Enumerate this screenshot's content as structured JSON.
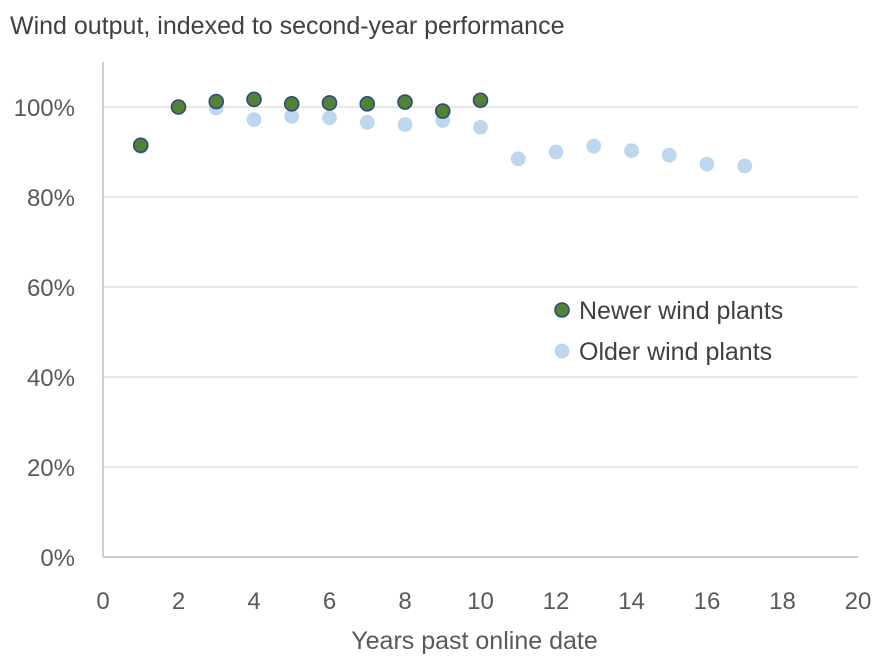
{
  "chart_data": {
    "type": "scatter",
    "title": "Wind output, indexed to second-year performance",
    "xlabel": "Years past online date",
    "ylabel": "",
    "xlim": [
      0,
      20
    ],
    "ylim": [
      0,
      1.1
    ],
    "x_ticks": [
      0,
      2,
      4,
      6,
      8,
      10,
      12,
      14,
      16,
      18,
      20
    ],
    "y_ticks": [
      0,
      0.2,
      0.4,
      0.6,
      0.8,
      1.0
    ],
    "y_tick_labels": [
      "0%",
      "20%",
      "40%",
      "60%",
      "80%",
      "100%"
    ],
    "grid": "horizontal",
    "legend_position": "right-middle",
    "series": [
      {
        "name": "Older wind plants",
        "color": "#bdd7ee",
        "stroke": "#bdd7ee",
        "x": [
          1,
          2,
          3,
          4,
          5,
          6,
          7,
          8,
          9,
          10,
          11,
          12,
          13,
          14,
          15,
          16,
          17
        ],
        "y": [
          0.912,
          1.0,
          0.998,
          0.972,
          0.979,
          0.976,
          0.966,
          0.961,
          0.97,
          0.955,
          0.885,
          0.9,
          0.913,
          0.903,
          0.893,
          0.873,
          0.869
        ]
      },
      {
        "name": "Newer wind plants",
        "color": "#548235",
        "stroke": "#2f4b7c",
        "x": [
          1,
          2,
          3,
          4,
          5,
          6,
          7,
          8,
          9,
          10
        ],
        "y": [
          0.915,
          1.0,
          1.012,
          1.017,
          1.007,
          1.009,
          1.007,
          1.011,
          0.991,
          1.015
        ]
      }
    ],
    "legend_order": [
      "Newer wind plants",
      "Older wind plants"
    ]
  }
}
